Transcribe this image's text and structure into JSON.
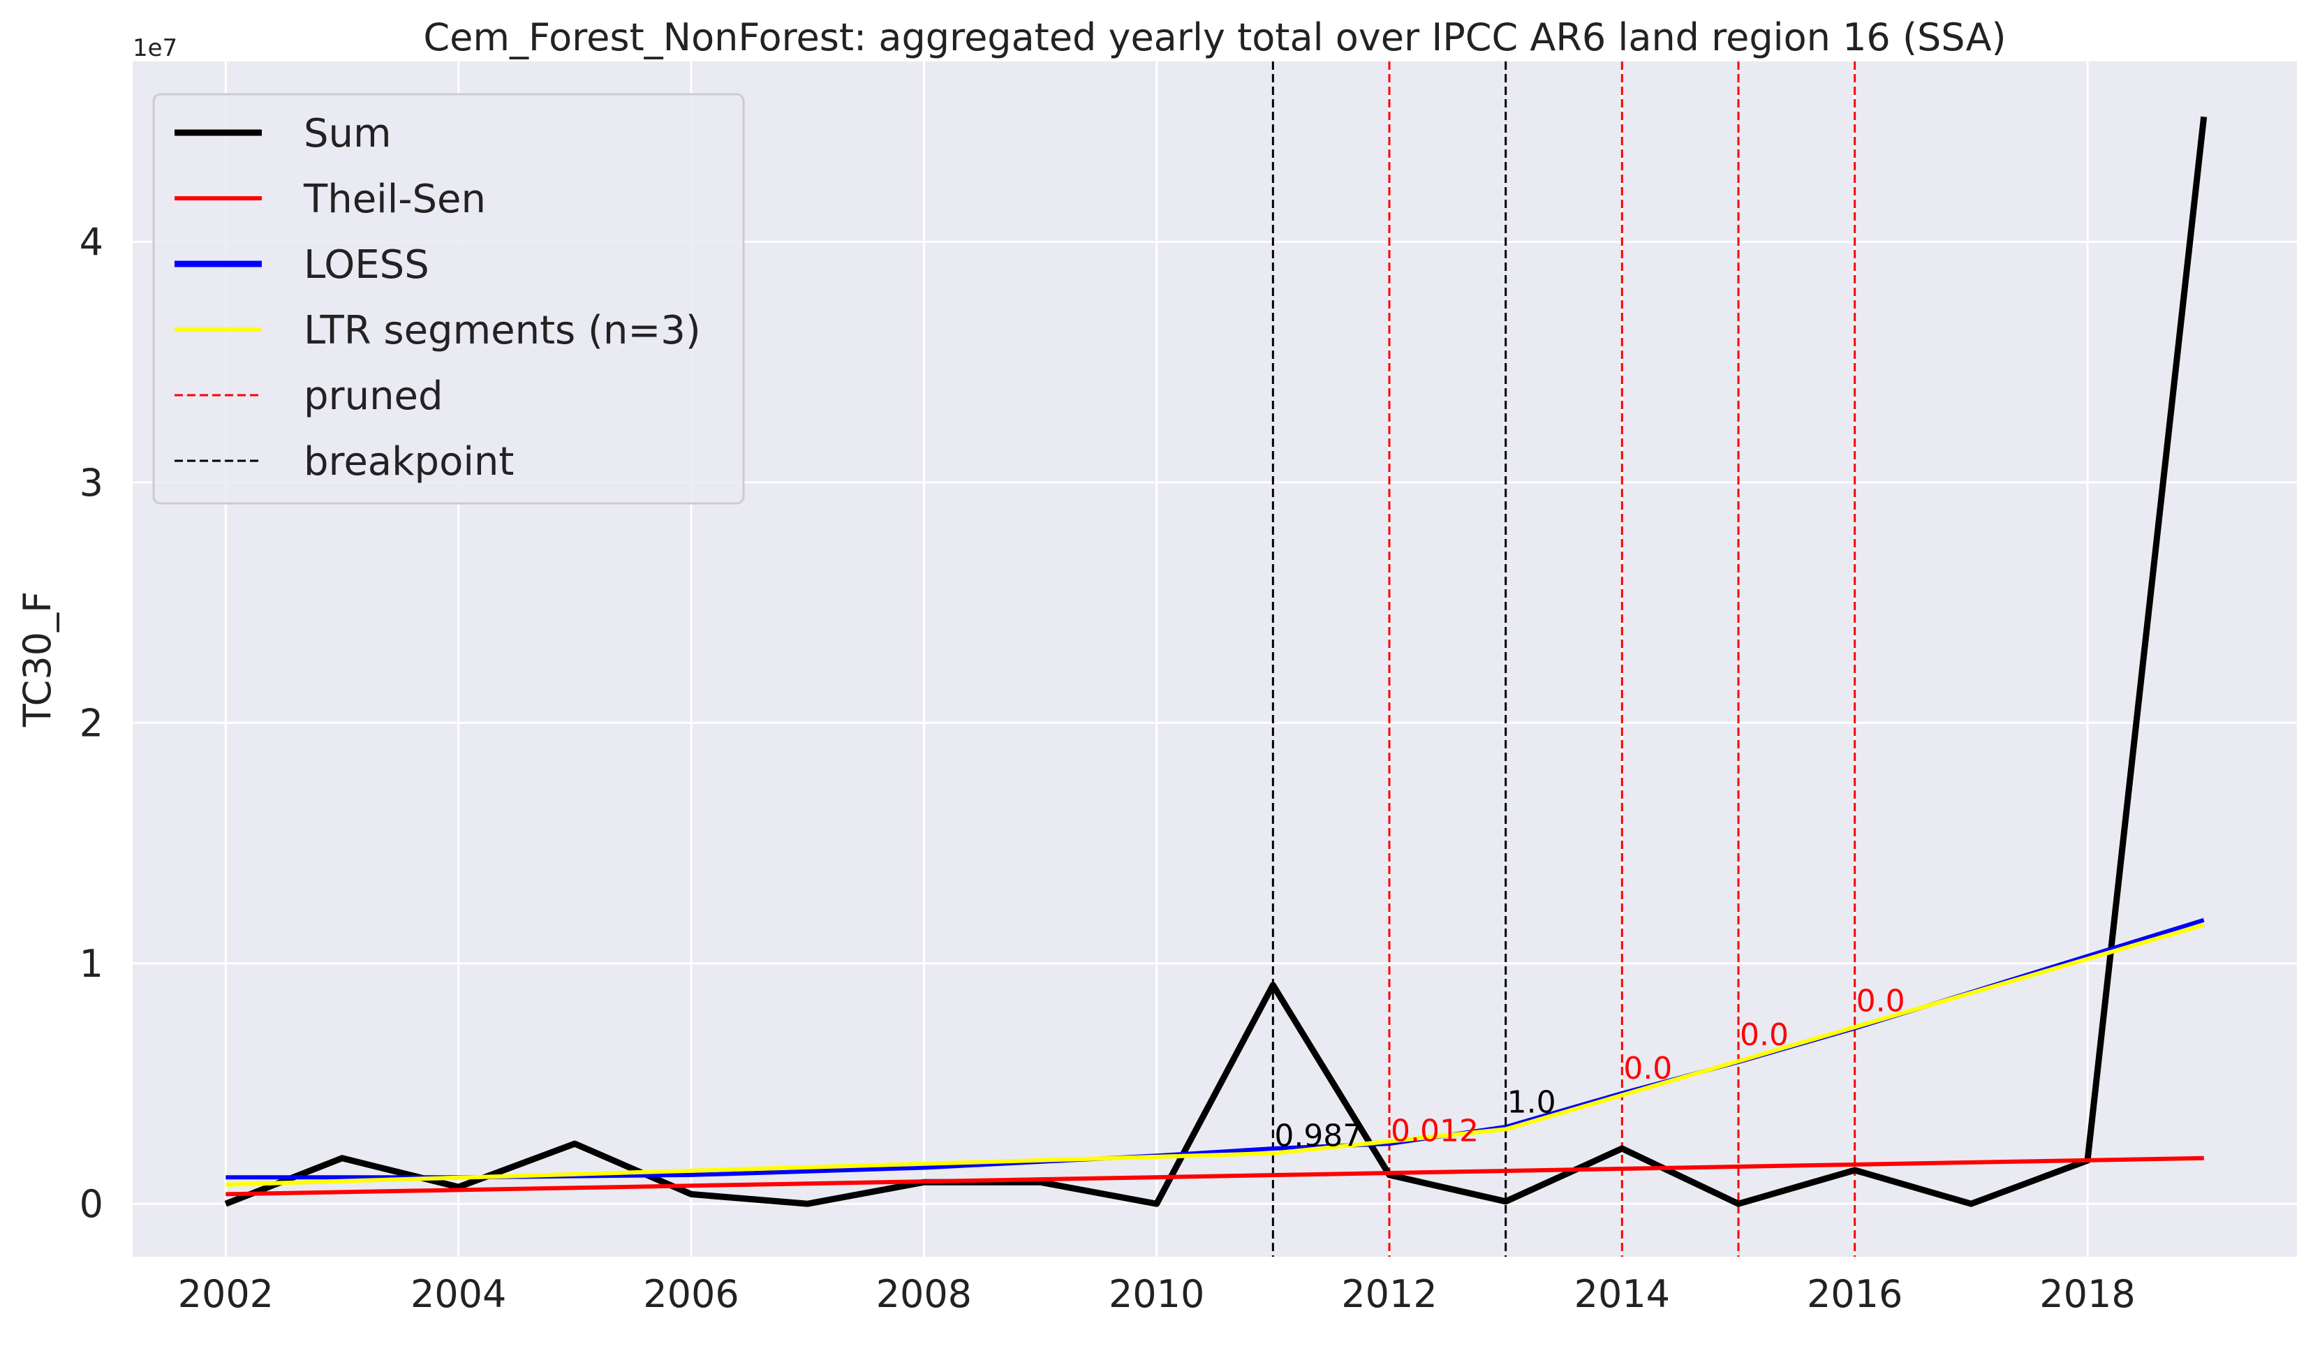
{
  "chart_data": {
    "type": "line",
    "title": "Cem_Forest_NonForest: aggregated yearly total over IPCC AR6 land region 16 (SSA)",
    "xlabel": "",
    "ylabel": "TC30_F",
    "y_exponent_label": "1e7",
    "xlim": [
      2001.2,
      2019.8
    ],
    "ylim": [
      -2200000,
      47500000
    ],
    "x_ticks": [
      2002,
      2004,
      2006,
      2008,
      2010,
      2012,
      2014,
      2016,
      2018
    ],
    "y_ticks": [
      0,
      10000000,
      20000000,
      30000000,
      40000000
    ],
    "y_tick_labels": [
      "0",
      "1",
      "2",
      "3",
      "4"
    ],
    "grid": true,
    "legend_position": "top-left",
    "series": [
      {
        "name": "Sum",
        "color": "#000000",
        "x": [
          2002,
          2003,
          2004,
          2005,
          2006,
          2007,
          2008,
          2009,
          2010,
          2011,
          2012,
          2013,
          2014,
          2015,
          2016,
          2017,
          2018,
          2019
        ],
        "y": [
          0,
          1900000,
          700000,
          2500000,
          400000,
          0,
          900000,
          900000,
          0,
          9100000,
          1200000,
          100000,
          2300000,
          0,
          1400000,
          0,
          1800000,
          45200000
        ]
      },
      {
        "name": "Theil-Sen",
        "color": "#ff0000",
        "x": [
          2002,
          2019
        ],
        "y": [
          400000,
          1900000
        ]
      },
      {
        "name": "LOESS",
        "color": "#0000ff",
        "x": [
          2002,
          2004,
          2006,
          2008,
          2010,
          2011,
          2012,
          2013,
          2014,
          2015,
          2016,
          2017,
          2018,
          2019
        ],
        "y": [
          1100000,
          1100000,
          1200000,
          1500000,
          2000000,
          2300000,
          2500000,
          3200000,
          4600000,
          5900000,
          7300000,
          8800000,
          10300000,
          11800000
        ]
      },
      {
        "name": "LTR segments (n=3)",
        "color": "#ffff00",
        "x": [
          2002,
          2011,
          2013,
          2019
        ],
        "y": [
          800000,
          2100000,
          3100000,
          11600000
        ]
      }
    ],
    "vlines": [
      {
        "kind": "breakpoint",
        "x": 2011,
        "color": "#000000",
        "label": "0.987",
        "label_y": 2400000
      },
      {
        "kind": "pruned",
        "x": 2012,
        "color": "#ff0000",
        "label": "0.012",
        "label_y": 2600000
      },
      {
        "kind": "breakpoint",
        "x": 2013,
        "color": "#000000",
        "label": "1.0",
        "label_y": 3800000
      },
      {
        "kind": "pruned",
        "x": 2014,
        "color": "#ff0000",
        "label": "0.0",
        "label_y": 5200000
      },
      {
        "kind": "pruned",
        "x": 2015,
        "color": "#ff0000",
        "label": "0.0",
        "label_y": 6600000
      },
      {
        "kind": "pruned",
        "x": 2016,
        "color": "#ff0000",
        "label": "0.0",
        "label_y": 8000000
      }
    ],
    "legend": [
      {
        "label": "Sum",
        "color": "#000000",
        "style": "solid-thick"
      },
      {
        "label": "Theil-Sen",
        "color": "#ff0000",
        "style": "solid"
      },
      {
        "label": "LOESS",
        "color": "#0000ff",
        "style": "solid-thick"
      },
      {
        "label": "LTR segments (n=3)",
        "color": "#ffff00",
        "style": "solid"
      },
      {
        "label": "pruned",
        "color": "#ff0000",
        "style": "dashed"
      },
      {
        "label": "breakpoint",
        "color": "#000000",
        "style": "dashed"
      }
    ],
    "background_color": "#eaeaf2",
    "grid_color": "#ffffff"
  }
}
